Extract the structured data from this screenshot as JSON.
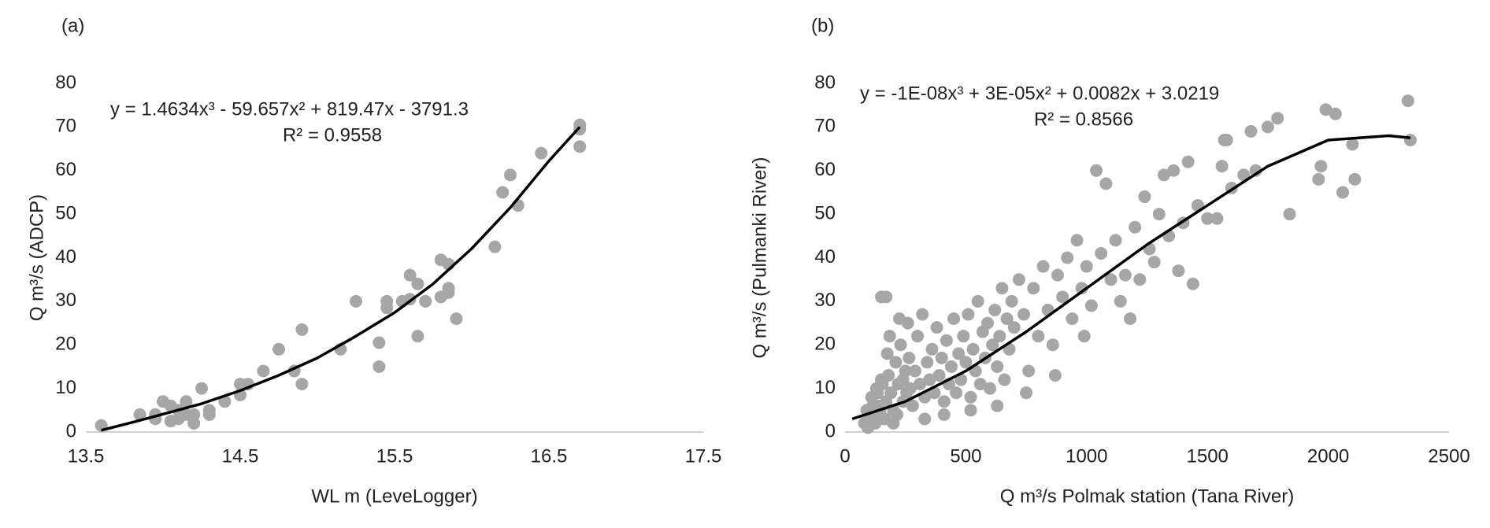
{
  "chart_data": [
    {
      "type": "scatter",
      "panel_label": "(a)",
      "x_label": "WL m (LeveLogger)",
      "y_label": "Q m³/s (ADCP)",
      "xlim": [
        13.5,
        17.5
      ],
      "xticks": [
        13.5,
        14.5,
        15.5,
        16.5,
        17.5
      ],
      "ylim": [
        0,
        80
      ],
      "yticks": [
        0,
        10,
        20,
        30,
        40,
        50,
        60,
        70,
        80
      ],
      "color": "#a6a6a6",
      "x": [
        13.6,
        13.85,
        13.95,
        13.95,
        14.0,
        14.05,
        14.05,
        14.1,
        14.1,
        14.15,
        14.15,
        14.2,
        14.2,
        14.25,
        14.3,
        14.3,
        14.4,
        14.5,
        14.5,
        14.55,
        14.65,
        14.75,
        14.85,
        14.9,
        14.9,
        15.15,
        15.25,
        15.4,
        15.4,
        15.45,
        15.45,
        15.55,
        15.6,
        15.6,
        15.65,
        15.65,
        15.7,
        15.8,
        15.8,
        15.85,
        15.85,
        15.85,
        15.9,
        16.15,
        16.2,
        16.25,
        16.3,
        16.45,
        16.7,
        16.7,
        16.7
      ],
      "values": [
        1.5,
        4,
        4,
        3,
        7,
        6,
        2.5,
        5,
        3,
        7,
        4,
        2,
        4,
        10,
        5,
        4,
        7,
        8.5,
        11,
        11,
        14,
        19,
        14,
        23.5,
        11,
        19,
        30,
        20.5,
        15,
        28.5,
        30,
        30,
        36,
        30.5,
        22,
        34,
        30,
        39.5,
        31,
        32,
        33,
        38.5,
        26,
        42.5,
        55,
        59,
        52,
        64,
        65.5,
        69.5,
        70.5
      ],
      "trendline": {
        "equation": "y = 1.4634x³ - 59.657x² + 819.47x - 3791.3",
        "r2": "R² = 0.9558",
        "color": "#000000",
        "x": [
          13.6,
          13.8,
          14,
          14.25,
          14.5,
          14.75,
          15,
          15.25,
          15.5,
          15.75,
          16,
          16.25,
          16.5,
          16.7
        ],
        "values": [
          0.4,
          2.2,
          4.1,
          6.5,
          9.5,
          13,
          17,
          22,
          27.4,
          34,
          42.1,
          51.5,
          62.2,
          70
        ]
      }
    },
    {
      "type": "scatter",
      "panel_label": "(b)",
      "x_label": "Q m³/s Polmak station (Tana River)",
      "y_label": "Q m³/s  (Pulmanki River)",
      "xlim": [
        0,
        2500
      ],
      "xticks": [
        0,
        500,
        1000,
        1500,
        2000,
        2500
      ],
      "ylim": [
        0,
        80
      ],
      "yticks": [
        0,
        10,
        20,
        30,
        40,
        50,
        60,
        70,
        80
      ],
      "color": "#a6a6a6",
      "x": [
        80,
        90,
        100,
        110,
        120,
        130,
        140,
        150,
        160,
        170,
        180,
        190,
        200,
        210,
        220,
        230,
        240,
        250,
        260,
        270,
        150,
        170,
        175,
        185,
        200,
        215,
        225,
        240,
        255,
        265,
        280,
        290,
        300,
        310,
        320,
        330,
        340,
        350,
        360,
        370,
        380,
        390,
        400,
        410,
        420,
        430,
        440,
        450,
        460,
        470,
        480,
        490,
        500,
        510,
        520,
        530,
        540,
        550,
        560,
        570,
        580,
        590,
        600,
        610,
        620,
        630,
        640,
        650,
        660,
        670,
        680,
        690,
        700,
        720,
        740,
        760,
        780,
        800,
        820,
        840,
        860,
        880,
        900,
        920,
        940,
        960,
        980,
        1000,
        1020,
        1040,
        1060,
        1080,
        1100,
        1120,
        1140,
        1160,
        1180,
        1200,
        1220,
        1240,
        1260,
        1280,
        1300,
        1320,
        1340,
        1360,
        1380,
        1400,
        1420,
        1440,
        1460,
        1500,
        1540,
        1560,
        1570,
        1580,
        1600,
        1650,
        1680,
        1700,
        1750,
        1790,
        1840,
        1960,
        1970,
        1990,
        2030,
        2060,
        2100,
        2110,
        2340,
        2330,
        95,
        105,
        115,
        125,
        135,
        145,
        155,
        165,
        330,
        410,
        520,
        630,
        750,
        870,
        990
      ],
      "values": [
        2,
        5,
        3,
        8,
        4,
        10,
        6,
        12,
        3,
        7,
        13,
        9,
        5,
        16,
        11,
        20,
        7,
        14,
        25,
        10,
        31,
        31,
        18,
        22,
        2,
        4,
        26,
        12,
        9,
        17,
        6,
        14,
        22,
        11,
        27,
        8,
        16,
        12,
        19,
        9,
        24,
        13,
        17,
        7,
        21,
        11,
        15,
        26,
        9,
        18,
        12,
        22,
        16,
        27,
        8,
        19,
        14,
        30,
        11,
        23,
        17,
        25,
        10,
        20,
        28,
        15,
        22,
        33,
        12,
        26,
        19,
        30,
        24,
        35,
        27,
        14,
        33,
        22,
        38,
        28,
        20,
        36,
        31,
        40,
        26,
        44,
        33,
        38,
        29,
        60,
        41,
        57,
        35,
        44,
        30,
        36,
        26,
        47,
        35,
        54,
        42,
        39,
        50,
        59,
        45,
        60,
        37,
        48,
        62,
        34,
        52,
        49,
        49,
        61,
        67,
        67,
        56,
        59,
        69,
        60,
        70,
        72,
        50,
        58,
        61,
        74,
        73,
        55,
        66,
        58,
        67,
        76,
        1,
        4,
        6,
        2,
        9,
        5,
        11,
        3,
        3,
        4,
        5,
        6,
        9,
        13,
        22
      ],
      "trendline": {
        "equation": "y = -1E-08x³ + 3E-05x² + 0.0082x + 3.0219",
        "r2": "R² = 0.8566",
        "color": "#000000",
        "x": [
          30,
          250,
          500,
          750,
          1000,
          1250,
          1500,
          1750,
          2000,
          2250,
          2340
        ],
        "values": [
          3,
          7,
          14,
          23,
          33,
          43,
          52,
          61,
          67,
          68,
          67.5
        ]
      }
    }
  ]
}
